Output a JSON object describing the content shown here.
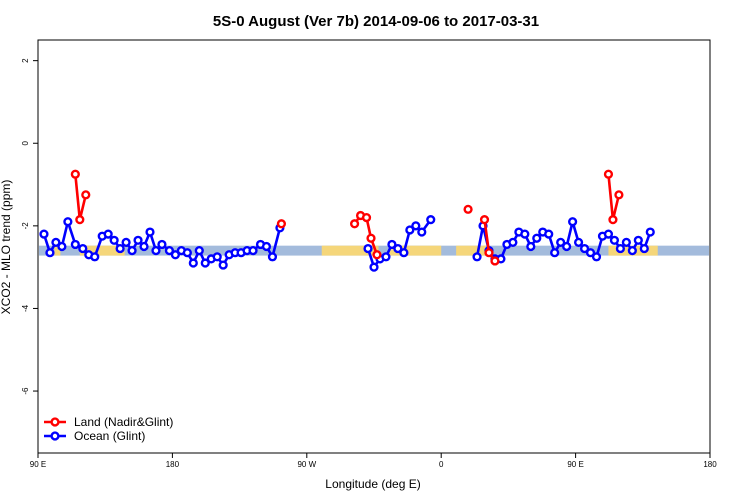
{
  "chart_data": {
    "type": "line",
    "title": "5S-0 August (Ver 7b)   2014-09-06 to 2017-03-31",
    "xlabel": "Longitude (deg E)",
    "ylabel": "XCO2 - MLO trend (ppm)",
    "xlim": [
      90,
      540
    ],
    "ylim": [
      -7.5,
      2.5
    ],
    "x_ticks": [
      {
        "value": 90,
        "label": "90 E"
      },
      {
        "value": 180,
        "label": "180"
      },
      {
        "value": 270,
        "label": "90 W"
      },
      {
        "value": 360,
        "label": "0"
      },
      {
        "value": 450,
        "label": "90 E"
      },
      {
        "value": 540,
        "label": "180"
      }
    ],
    "y_ticks": [
      {
        "value": 2,
        "label": "2"
      },
      {
        "value": 0,
        "label": "0"
      },
      {
        "value": -2,
        "label": "-2"
      },
      {
        "value": -4,
        "label": "-4"
      },
      {
        "value": -6,
        "label": "-6"
      }
    ],
    "band": {
      "ymin": -2.72,
      "ymax": -2.48,
      "color": "#a3bbdc",
      "land_color": "#f5d67a",
      "land_segments": [
        [
          101,
          105
        ],
        [
          118,
          148
        ],
        [
          280,
          318
        ],
        [
          325,
          360
        ],
        [
          370,
          390
        ],
        [
          472,
          505
        ]
      ]
    },
    "legend": {
      "position": "bottom-left",
      "entries": [
        {
          "label": "Land (Nadir&Glint)",
          "color": "#ff0000"
        },
        {
          "label": "Ocean (Glint)",
          "color": "#0000ff"
        }
      ]
    },
    "series": [
      {
        "name": "Ocean (Glint)",
        "color": "#0000ff",
        "segments": [
          [
            [
              94,
              -2.2
            ],
            [
              98,
              -2.65
            ],
            [
              102,
              -2.4
            ],
            [
              106,
              -2.5
            ],
            [
              110,
              -1.9
            ],
            [
              115,
              -2.45
            ],
            [
              120,
              -2.55
            ],
            [
              124,
              -2.7
            ],
            [
              128,
              -2.75
            ],
            [
              133,
              -2.25
            ],
            [
              137,
              -2.2
            ],
            [
              141,
              -2.35
            ],
            [
              145,
              -2.55
            ],
            [
              149,
              -2.4
            ],
            [
              153,
              -2.6
            ],
            [
              157,
              -2.35
            ],
            [
              161,
              -2.5
            ],
            [
              165,
              -2.15
            ],
            [
              169,
              -2.6
            ],
            [
              173,
              -2.45
            ],
            [
              178,
              -2.6
            ],
            [
              182,
              -2.7
            ],
            [
              186,
              -2.6
            ],
            [
              190,
              -2.65
            ],
            [
              194,
              -2.9
            ],
            [
              198,
              -2.6
            ],
            [
              202,
              -2.9
            ],
            [
              206,
              -2.8
            ],
            [
              210,
              -2.75
            ],
            [
              214,
              -2.95
            ],
            [
              218,
              -2.7
            ],
            [
              222,
              -2.65
            ],
            [
              226,
              -2.65
            ],
            [
              230,
              -2.6
            ],
            [
              234,
              -2.6
            ],
            [
              239,
              -2.45
            ],
            [
              243,
              -2.5
            ],
            [
              247,
              -2.75
            ],
            [
              252,
              -2.05
            ]
          ],
          [
            [
              311,
              -2.55
            ],
            [
              315,
              -3.0
            ],
            [
              319,
              -2.8
            ],
            [
              323,
              -2.75
            ],
            [
              327,
              -2.45
            ],
            [
              331,
              -2.55
            ],
            [
              335,
              -2.65
            ],
            [
              339,
              -2.1
            ],
            [
              343,
              -2.0
            ],
            [
              347,
              -2.15
            ],
            [
              353,
              -1.85
            ]
          ],
          [
            [
              384,
              -2.75
            ],
            [
              388,
              -2.0
            ],
            [
              392,
              -2.6
            ],
            [
              396,
              -2.8
            ],
            [
              400,
              -2.8
            ],
            [
              404,
              -2.45
            ],
            [
              408,
              -2.4
            ],
            [
              412,
              -2.15
            ],
            [
              416,
              -2.2
            ],
            [
              420,
              -2.5
            ],
            [
              424,
              -2.3
            ],
            [
              428,
              -2.15
            ],
            [
              432,
              -2.2
            ],
            [
              436,
              -2.65
            ],
            [
              440,
              -2.4
            ],
            [
              444,
              -2.5
            ],
            [
              448,
              -1.9
            ],
            [
              452,
              -2.4
            ],
            [
              456,
              -2.55
            ],
            [
              460,
              -2.65
            ],
            [
              464,
              -2.75
            ],
            [
              468,
              -2.25
            ],
            [
              472,
              -2.2
            ],
            [
              476,
              -2.35
            ],
            [
              480,
              -2.55
            ],
            [
              484,
              -2.4
            ],
            [
              488,
              -2.6
            ],
            [
              492,
              -2.35
            ],
            [
              496,
              -2.55
            ],
            [
              500,
              -2.15
            ]
          ]
        ]
      },
      {
        "name": "Land (Nadir&Glint)",
        "color": "#ff0000",
        "segments": [
          [
            [
              115,
              -0.75
            ],
            [
              118,
              -1.85
            ],
            [
              122,
              -1.25
            ]
          ],
          [
            [
              253,
              -1.95
            ]
          ],
          [
            [
              302,
              -1.95
            ],
            [
              306,
              -1.75
            ],
            [
              310,
              -1.8
            ],
            [
              313,
              -2.3
            ],
            [
              317,
              -2.7
            ]
          ],
          [
            [
              378,
              -1.6
            ]
          ],
          [
            [
              389,
              -1.85
            ],
            [
              392,
              -2.65
            ],
            [
              396,
              -2.85
            ]
          ],
          [
            [
              472,
              -0.75
            ],
            [
              475,
              -1.85
            ],
            [
              479,
              -1.25
            ]
          ]
        ]
      }
    ]
  }
}
